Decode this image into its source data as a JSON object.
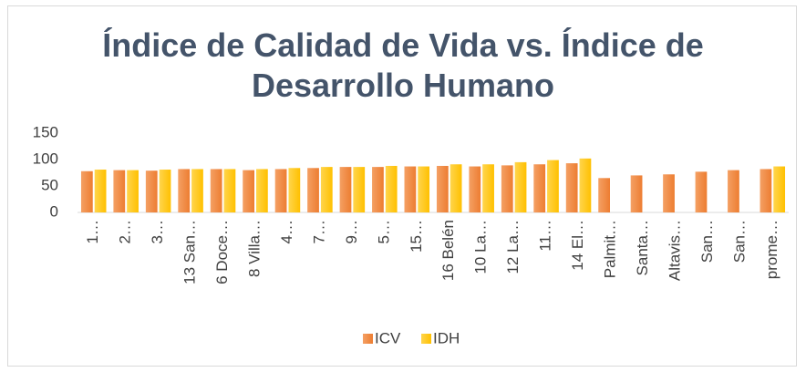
{
  "chart_data": {
    "type": "bar",
    "title": "Índice de Calidad de Vida vs. Índice de Desarrollo Humano",
    "categories": [
      "1…",
      "2…",
      "3…",
      "13 San…",
      "6 Doce…",
      "8 Villa…",
      "4…",
      "7…",
      "9…",
      "5…",
      "15…",
      "16 Belén",
      "10 La…",
      "12 La…",
      "11…",
      "14 El…",
      "Palmit…",
      "Santa…",
      "Altavis…",
      "San…",
      "San…",
      "prome…"
    ],
    "series": [
      {
        "name": "ICV",
        "color": "#ed7d31",
        "values": [
          78,
          80,
          79,
          82,
          82,
          80,
          82,
          84,
          86,
          86,
          87,
          88,
          87,
          89,
          91,
          93,
          65,
          70,
          72,
          77,
          80,
          82
        ]
      },
      {
        "name": "IDH",
        "color": "#ffc000",
        "values": [
          81,
          80,
          81,
          82,
          82,
          82,
          84,
          86,
          86,
          88,
          87,
          91,
          91,
          95,
          99,
          102,
          null,
          null,
          null,
          null,
          null,
          87
        ]
      }
    ],
    "ylim": [
      0,
      150
    ],
    "yticks": [
      0,
      50,
      100,
      150
    ],
    "grid": false,
    "legend": "bottom"
  }
}
